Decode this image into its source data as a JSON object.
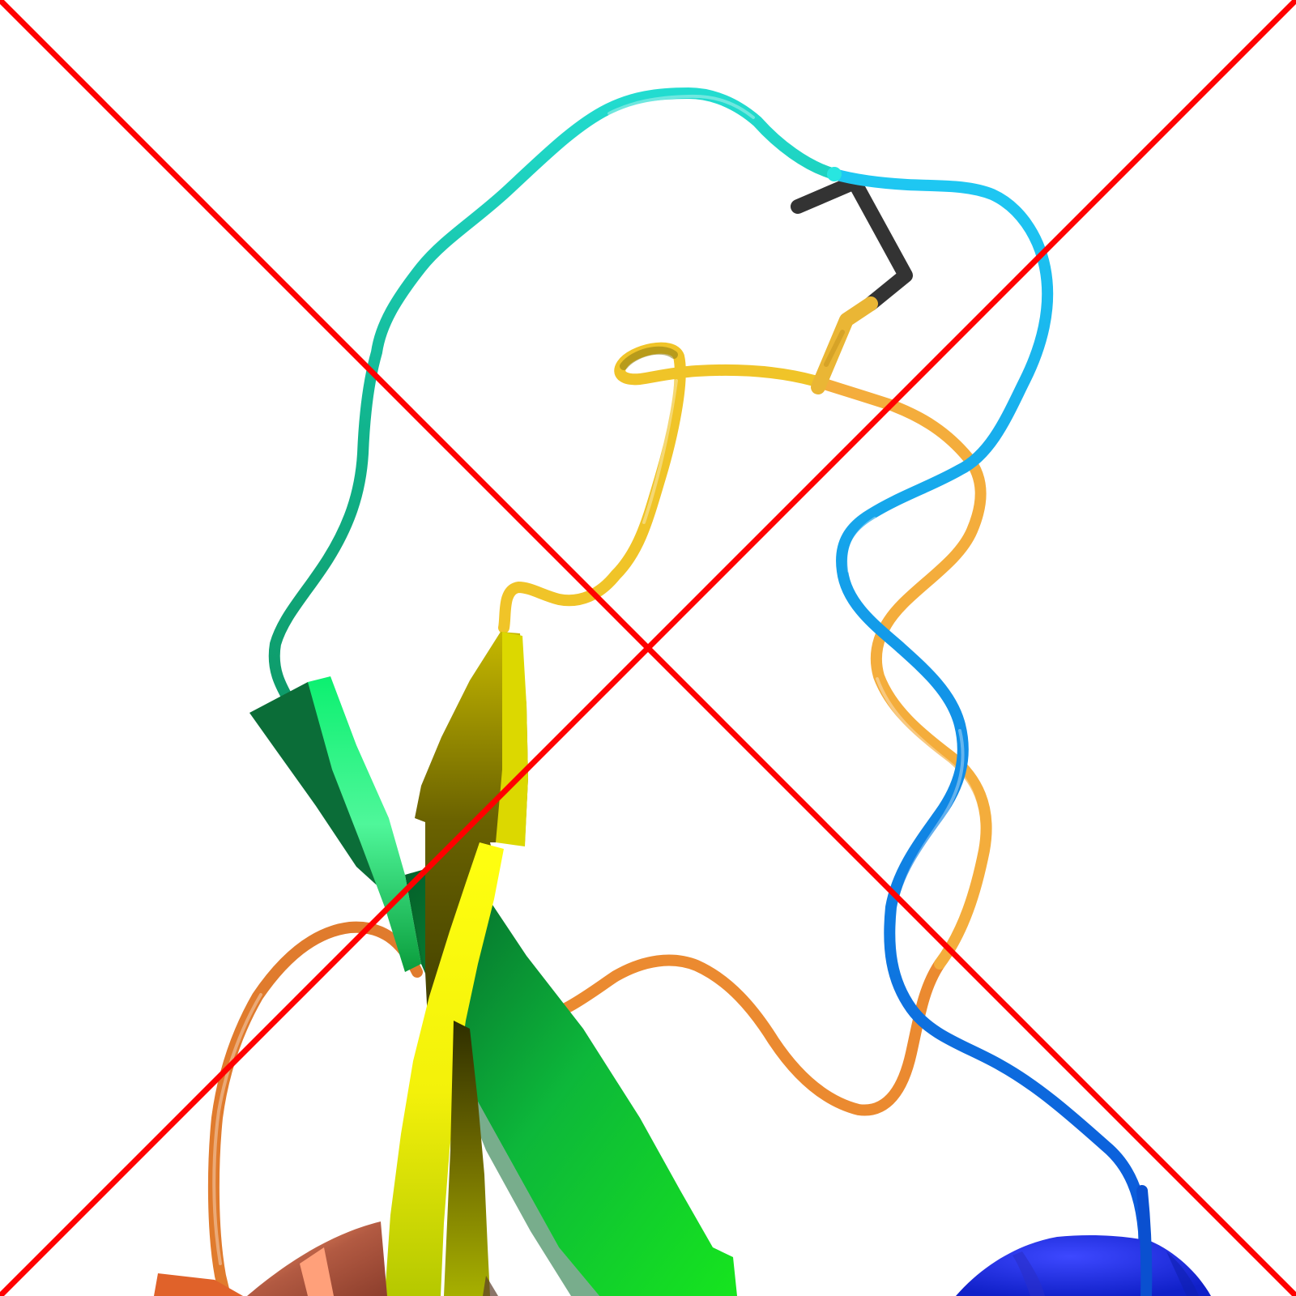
{
  "image": {
    "background": "#ffffff",
    "subject": "protein-cartoon-render",
    "colors": {
      "blue_helix": "#1f2ef0",
      "blue_loop": "#0a6fe0",
      "sky_loop": "#13b7ef",
      "cyan_loop": "#1fd9df",
      "teal_loop": "#12c4a2",
      "green_strand": "#0fcf3a",
      "green_strand_dark": "#0a7a35",
      "mint_strand": "#14f07a",
      "yellow_strand": "#ffff1a",
      "olive_strand": "#8f8a00",
      "gold_loop": "#f2c21e",
      "amber_loop": "#f4a83a",
      "orange_loop": "#e8832b",
      "coral_helix": "#c05a3c",
      "disulfide_dark": "#333333",
      "disulfide_gold": "#e9b733",
      "cross_mark": "#ff0000"
    }
  }
}
